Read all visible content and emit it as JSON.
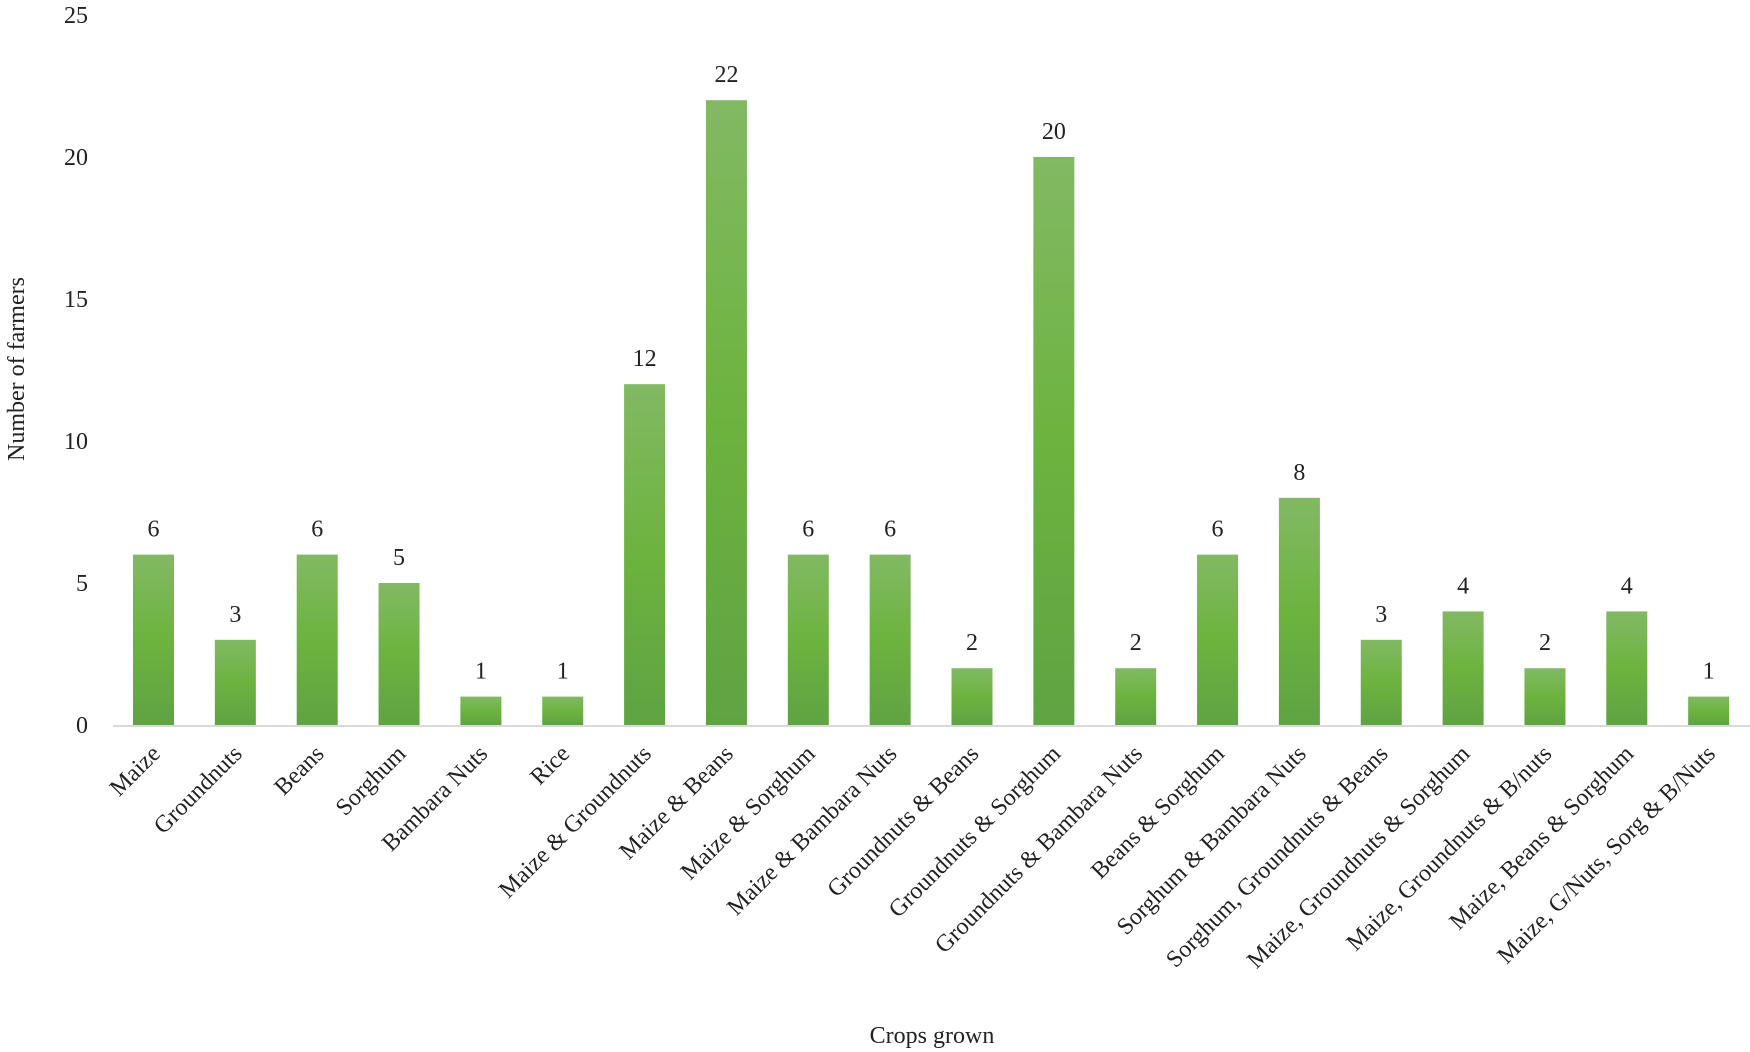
{
  "chart_data": {
    "type": "bar",
    "title": "",
    "xlabel": "Crops grown",
    "ylabel": "Number of farmers",
    "ylim": [
      0,
      25
    ],
    "yticks": [
      0,
      5,
      10,
      15,
      20,
      25
    ],
    "grid": false,
    "legend": "none",
    "data_labels": true,
    "bar_color": "#6db33f",
    "bar_color_top": "#82b964",
    "bar_color_bottom": "#5fa343",
    "categories": [
      "Maize",
      "Groundnuts",
      "Beans",
      "Sorghum",
      "Bambara Nuts",
      "Rice",
      "Maize & Groundnuts",
      "Maize & Beans",
      "Maize & Sorghum",
      "Maize & Bambara Nuts",
      "Groundnuts & Beans",
      "Groundnuts & Sorghum",
      "Groundnuts & Bambara Nuts",
      "Beans & Sorghum",
      "Sorghum & Bambara Nuts",
      "Sorghum, Groundnuts & Beans",
      "Maize, Groundnuts & Sorghum",
      "Maize, Groundnuts & B/nuts",
      "Maize, Beans & Sorghum",
      "Maize, G/Nuts, Sorg & B/Nuts"
    ],
    "values": [
      6,
      3,
      6,
      5,
      1,
      1,
      12,
      22,
      6,
      6,
      2,
      20,
      2,
      6,
      8,
      3,
      4,
      2,
      4,
      1
    ]
  }
}
